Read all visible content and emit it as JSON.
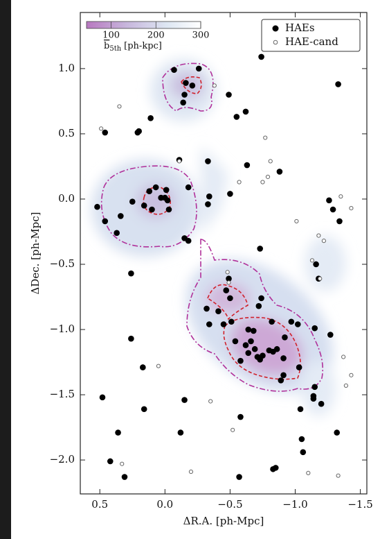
{
  "chart_data": {
    "type": "scatter",
    "xlabel": "ΔR.A. [ph-Mpc]",
    "ylabel": "ΔDec. [ph-Mpc]",
    "xlim": [
      0.65,
      -1.55
    ],
    "ylim": [
      -2.26,
      1.43
    ],
    "xticks": [
      0.5,
      {
        "value": 0,
        "label": "0.0"
      },
      {
        "value": -0.5,
        "label": "−0.5"
      },
      {
        "value": -1,
        "label": "−1.0"
      },
      {
        "value": -1.5,
        "label": "−1.5"
      }
    ],
    "yticks": [
      {
        "value": -2,
        "label": "−2.0"
      },
      {
        "value": -1.5,
        "label": "−1.5"
      },
      {
        "value": -1,
        "label": "−1.0"
      },
      {
        "value": -0.5,
        "label": "−0.5"
      },
      {
        "value": 0,
        "label": "0.0"
      },
      0.5,
      {
        "value": 1,
        "label": "1.0"
      }
    ],
    "legend": "upper right",
    "colorbar": {
      "symbol": "b",
      "subscript": "5th",
      "unit": "[ph-kpc]",
      "lim": [
        45,
        300
      ],
      "ticks": [
        100,
        200,
        300
      ]
    },
    "series": [
      {
        "name": "HAEs",
        "color": "#000000",
        "marker": "filled",
        "x": [
          -0.07,
          -0.26,
          -0.16,
          -0.21,
          -0.15,
          -0.14,
          -0.49,
          -0.74,
          -1.33,
          0.46,
          0.2,
          0.21,
          0.11,
          -0.55,
          -0.62,
          -0.11,
          -0.88,
          -0.63,
          -0.33,
          -0.01,
          0.07,
          0.12,
          0.03,
          0.0,
          -0.02,
          0.1,
          -0.03,
          -0.18,
          0.16,
          0.25,
          0.52,
          0.46,
          0.34,
          0.37,
          -0.18,
          -0.15,
          -0.33,
          -0.34,
          -0.5,
          -0.73,
          -0.49,
          -1.26,
          -1.29,
          -1.34,
          -1.16,
          -1.18,
          0.26,
          -0.32,
          -0.41,
          -0.5,
          -0.47,
          -0.34,
          -0.45,
          -0.51,
          -0.72,
          -0.74,
          -0.64,
          -0.82,
          -1.02,
          -1.15,
          -1.27,
          -0.54,
          -0.62,
          -0.66,
          -0.69,
          -0.75,
          -0.8,
          -0.71,
          -0.73,
          -0.64,
          -0.91,
          -0.83,
          -0.91,
          -0.86,
          -0.58,
          -0.92,
          -0.68,
          -0.89,
          -1.03,
          -1.15,
          -1.14,
          -1.2,
          0.26,
          0.17,
          0.48,
          0.16,
          -0.15,
          -0.58,
          -1.04,
          -1.05,
          -1.06,
          -1.32,
          0.36,
          0.42,
          0.31,
          -0.12,
          -0.57,
          -0.85,
          -0.83,
          -0.97,
          -1.14
        ],
        "values": [
          0.99,
          1.0,
          0.89,
          0.87,
          0.8,
          0.74,
          0.8,
          1.09,
          0.88,
          0.51,
          0.52,
          0.51,
          0.62,
          0.63,
          0.67,
          0.3,
          0.21,
          0.26,
          0.29,
          0.07,
          0.09,
          0.06,
          0.01,
          0.01,
          -0.01,
          -0.08,
          -0.08,
          0.09,
          -0.05,
          -0.02,
          -0.06,
          -0.17,
          -0.13,
          -0.26,
          -0.32,
          -0.3,
          -0.04,
          0.02,
          0.04,
          -0.38,
          -0.61,
          -0.01,
          -0.08,
          -0.17,
          -0.5,
          -0.61,
          -0.57,
          -0.84,
          -0.86,
          -0.76,
          -0.7,
          -0.96,
          -0.96,
          -0.94,
          -0.82,
          -0.76,
          -1.0,
          -0.94,
          -0.96,
          -0.99,
          -1.04,
          -1.09,
          -1.12,
          -1.09,
          -1.15,
          -1.2,
          -1.16,
          -1.21,
          -1.23,
          -1.18,
          -1.22,
          -1.17,
          -1.35,
          -1.15,
          -1.24,
          -1.06,
          -1.01,
          -1.39,
          -1.29,
          -1.44,
          -1.53,
          -1.57,
          -1.07,
          -1.29,
          -1.52,
          -1.61,
          -1.54,
          -1.67,
          -1.61,
          -1.84,
          -1.94,
          -1.79,
          -1.79,
          -2.01,
          -2.13,
          -1.79,
          -2.13,
          -2.06,
          -2.07,
          -0.94,
          -1.51
        ]
      },
      {
        "name": "HAE-cand",
        "color": "#666666",
        "marker": "open",
        "x": [
          0.35,
          0.49,
          -0.38,
          -0.77,
          -0.81,
          -0.75,
          -0.79,
          -0.57,
          -1.01,
          -1.18,
          -1.13,
          -1.19,
          -1.43,
          -1.22,
          0.05,
          -1.37,
          -1.43,
          -1.39,
          -1.33,
          -1.1,
          0.33,
          -0.35,
          -0.52,
          -0.2,
          -0.48,
          -0.49,
          -0.11,
          -1.35
        ],
        "values": [
          0.71,
          0.54,
          0.87,
          0.47,
          0.29,
          0.13,
          0.17,
          0.13,
          -0.17,
          -0.28,
          -0.47,
          -0.61,
          -0.07,
          -0.32,
          -1.28,
          -1.21,
          -1.35,
          -1.43,
          -2.12,
          -2.1,
          -2.03,
          -1.55,
          -1.77,
          -2.09,
          -0.56,
          -0.64,
          0.29,
          0.02
        ]
      }
    ]
  }
}
